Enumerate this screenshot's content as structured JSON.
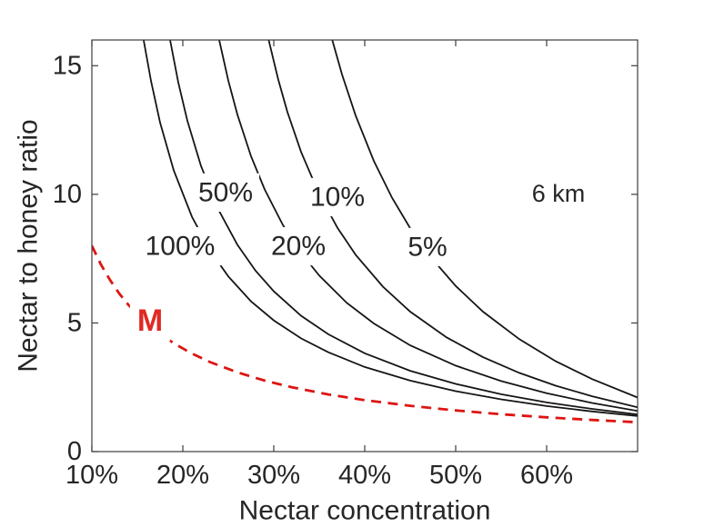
{
  "chart_data": {
    "type": "line",
    "title": "",
    "xlabel": "Nectar concentration",
    "ylabel": "Nectar to honey ratio",
    "xlim": [
      0.1,
      0.7
    ],
    "ylim": [
      0,
      16
    ],
    "grid": false,
    "x_ticks": [
      {
        "v": 0.1,
        "label": "10%"
      },
      {
        "v": 0.2,
        "label": "20%"
      },
      {
        "v": 0.3,
        "label": "30%"
      },
      {
        "v": 0.4,
        "label": "40%"
      },
      {
        "v": 0.5,
        "label": "50%"
      },
      {
        "v": 0.6,
        "label": "60%"
      }
    ],
    "y_ticks": [
      {
        "v": 0,
        "label": "0"
      },
      {
        "v": 5,
        "label": "5"
      },
      {
        "v": 10,
        "label": "10"
      },
      {
        "v": 15,
        "label": "15"
      }
    ],
    "annotation": {
      "text": "6 km",
      "x": 0.613,
      "y": 10.03,
      "color": "#262626"
    },
    "curve_color": "#151515",
    "dashed_color": "#dd1512",
    "series": [
      {
        "name": "100%",
        "style": "solid",
        "color": "#151515",
        "label": {
          "text": "100%",
          "x": 0.197,
          "y": 7.98
        },
        "points": [
          [
            0.1569,
            16.0
          ],
          [
            0.165,
            14.41
          ],
          [
            0.175,
            12.79
          ],
          [
            0.19,
            10.93
          ],
          [
            0.21,
            9.13
          ],
          [
            0.23,
            7.81
          ],
          [
            0.25,
            6.81
          ],
          [
            0.275,
            5.84
          ],
          [
            0.3,
            5.1
          ],
          [
            0.33,
            4.4
          ],
          [
            0.36,
            3.86
          ],
          [
            0.4,
            3.29
          ],
          [
            0.45,
            2.76
          ],
          [
            0.5,
            2.35
          ],
          [
            0.55,
            2.03
          ],
          [
            0.6,
            1.77
          ],
          [
            0.65,
            1.56
          ],
          [
            0.7,
            1.38
          ]
        ]
      },
      {
        "name": "50%",
        "style": "solid",
        "color": "#151515",
        "label": {
          "text": "50%",
          "x": 0.247,
          "y": 10.07
        },
        "points": [
          [
            0.186,
            16.0
          ],
          [
            0.195,
            14.35
          ],
          [
            0.205,
            12.86
          ],
          [
            0.22,
            11.1
          ],
          [
            0.24,
            9.35
          ],
          [
            0.26,
            8.04
          ],
          [
            0.28,
            7.03
          ],
          [
            0.3,
            6.23
          ],
          [
            0.33,
            5.28
          ],
          [
            0.36,
            4.56
          ],
          [
            0.4,
            3.82
          ],
          [
            0.45,
            3.14
          ],
          [
            0.5,
            2.63
          ],
          [
            0.55,
            2.23
          ],
          [
            0.6,
            1.91
          ],
          [
            0.65,
            1.66
          ],
          [
            0.7,
            1.44
          ]
        ]
      },
      {
        "name": "20%",
        "style": "solid",
        "color": "#151515",
        "label": {
          "text": "20%",
          "x": 0.327,
          "y": 7.98
        },
        "points": [
          [
            0.24,
            16.0
          ],
          [
            0.25,
            14.42
          ],
          [
            0.26,
            13.1
          ],
          [
            0.275,
            11.48
          ],
          [
            0.29,
            10.19
          ],
          [
            0.31,
            8.81
          ],
          [
            0.33,
            7.72
          ],
          [
            0.35,
            6.84
          ],
          [
            0.38,
            5.79
          ],
          [
            0.41,
            4.98
          ],
          [
            0.45,
            4.13
          ],
          [
            0.5,
            3.34
          ],
          [
            0.55,
            2.74
          ],
          [
            0.6,
            2.27
          ],
          [
            0.65,
            1.89
          ],
          [
            0.7,
            1.58
          ]
        ]
      },
      {
        "name": "10%",
        "style": "solid",
        "color": "#151515",
        "label": {
          "text": "10%",
          "x": 0.37,
          "y": 9.89
        },
        "points": [
          [
            0.2944,
            16.0
          ],
          [
            0.305,
            14.45
          ],
          [
            0.315,
            13.2
          ],
          [
            0.33,
            11.65
          ],
          [
            0.35,
            10.0
          ],
          [
            0.37,
            8.7
          ],
          [
            0.39,
            7.65
          ],
          [
            0.42,
            6.41
          ],
          [
            0.45,
            5.44
          ],
          [
            0.49,
            4.44
          ],
          [
            0.53,
            3.67
          ],
          [
            0.57,
            3.06
          ],
          [
            0.61,
            2.56
          ],
          [
            0.65,
            2.15
          ],
          [
            0.7,
            1.72
          ]
        ]
      },
      {
        "name": "5%",
        "style": "solid",
        "color": "#151515",
        "label": {
          "text": "5%",
          "x": 0.469,
          "y": 7.95
        },
        "points": [
          [
            0.3643,
            16.0
          ],
          [
            0.375,
            14.66
          ],
          [
            0.39,
            13.06
          ],
          [
            0.41,
            11.3
          ],
          [
            0.43,
            9.87
          ],
          [
            0.45,
            8.68
          ],
          [
            0.475,
            7.46
          ],
          [
            0.5,
            6.44
          ],
          [
            0.53,
            5.44
          ],
          [
            0.57,
            4.37
          ],
          [
            0.61,
            3.51
          ],
          [
            0.65,
            2.82
          ],
          [
            0.7,
            2.1
          ]
        ]
      },
      {
        "name": "M",
        "style": "dashed",
        "color": "#dd1512",
        "label": {
          "text": "M",
          "x": 0.164,
          "y": 5.09,
          "color": "#e12823",
          "bold": true
        },
        "points": [
          [
            0.1,
            8.0
          ],
          [
            0.11,
            7.27
          ],
          [
            0.12,
            6.67
          ],
          [
            0.13,
            6.15
          ],
          [
            0.14,
            5.71
          ],
          [
            0.155,
            5.16
          ],
          [
            0.17,
            4.71
          ],
          [
            0.19,
            4.21
          ],
          [
            0.21,
            3.81
          ],
          [
            0.23,
            3.48
          ],
          [
            0.26,
            3.08
          ],
          [
            0.29,
            2.76
          ],
          [
            0.32,
            2.5
          ],
          [
            0.36,
            2.22
          ],
          [
            0.4,
            2.0
          ],
          [
            0.45,
            1.78
          ],
          [
            0.5,
            1.6
          ],
          [
            0.55,
            1.45
          ],
          [
            0.6,
            1.33
          ],
          [
            0.65,
            1.23
          ],
          [
            0.7,
            1.14
          ]
        ]
      }
    ]
  }
}
